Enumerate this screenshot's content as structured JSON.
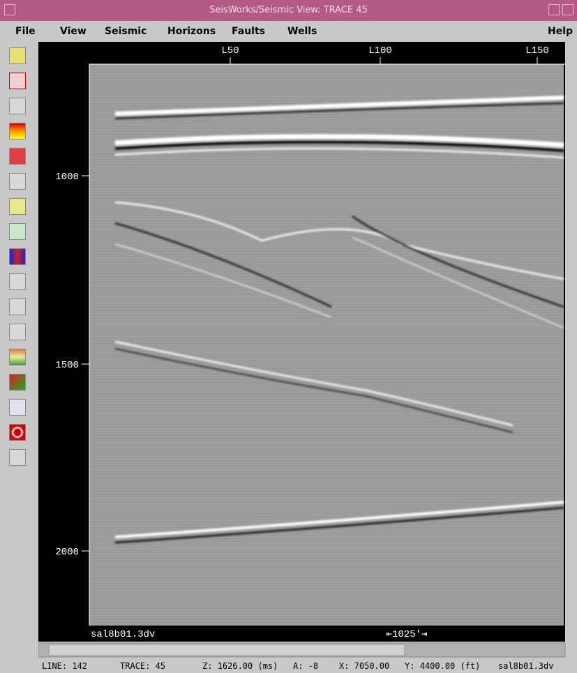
{
  "window": {
    "title": "SeisWorks/Seismic View: TRACE 45"
  },
  "menu": [
    "File",
    "View",
    "Seismic",
    "Horizons",
    "Faults",
    "Wells",
    "Help"
  ],
  "axis": {
    "top_labels": [
      "L50",
      "L100",
      "L150"
    ],
    "left_labels": [
      "1000",
      "1500",
      "2000"
    ]
  },
  "view": {
    "file_label": "sal8b01.3dv",
    "scale_label": "⇤1025'⇥"
  },
  "status": {
    "line": "LINE: 142",
    "trace": "TRACE: 45",
    "z": "Z: 1626.00 (ms)",
    "a": "A: -8",
    "x": "X: 7050.00",
    "y": "Y: 4400.00 (ft)",
    "file": "sal8b01.3dv"
  }
}
